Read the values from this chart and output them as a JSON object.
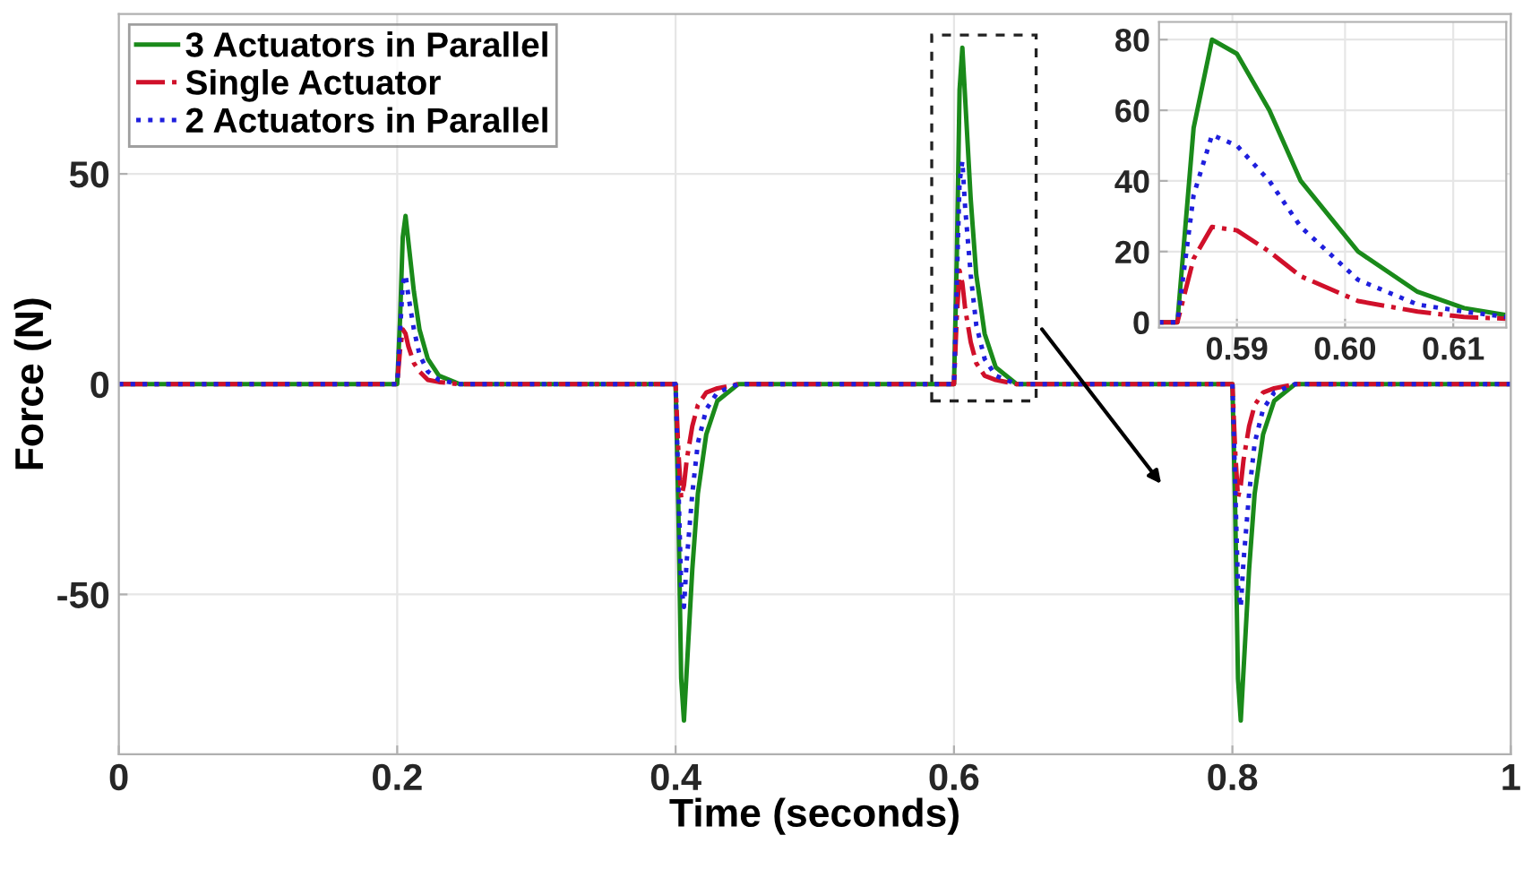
{
  "chart_data": [
    {
      "type": "line",
      "xlabel": "Time (seconds)",
      "ylabel": "Force (N)",
      "xlim": [
        0,
        1
      ],
      "xticks": [
        0,
        0.2,
        0.4,
        0.6,
        0.8,
        1
      ],
      "ylim": [
        -88,
        88
      ],
      "yticks": [
        -50,
        0,
        50
      ],
      "grid": true,
      "legend": "top left",
      "x": [
        0,
        0.2,
        0.202,
        0.204,
        0.206,
        0.208,
        0.212,
        0.216,
        0.222,
        0.23,
        0.245,
        0.4,
        0.402,
        0.404,
        0.406,
        0.408,
        0.412,
        0.416,
        0.422,
        0.43,
        0.445,
        0.6,
        0.602,
        0.604,
        0.606,
        0.608,
        0.612,
        0.616,
        0.622,
        0.63,
        0.645,
        0.8,
        0.802,
        0.804,
        0.806,
        0.808,
        0.812,
        0.816,
        0.822,
        0.83,
        0.845,
        1
      ],
      "series": [
        {
          "name": "3 Actuators in Parallel",
          "color": "#1a8a1a",
          "line_style": "solid",
          "values": [
            0,
            0,
            15,
            35,
            40,
            34,
            22,
            13,
            6,
            2,
            0,
            0,
            -30,
            -70,
            -80,
            -68,
            -44,
            -26,
            -12,
            -4,
            0,
            0,
            30,
            70,
            80,
            68,
            44,
            26,
            12,
            4,
            0,
            0,
            -30,
            -70,
            -80,
            -68,
            -44,
            -26,
            -12,
            -4,
            0,
            0
          ]
        },
        {
          "name": "Single Actuator",
          "color": "#d0102a",
          "line_style": "dashdot",
          "values": [
            0,
            0,
            8,
            13,
            12,
            9,
            5,
            3,
            1,
            0.5,
            0,
            0,
            -16,
            -27,
            -24,
            -18,
            -10,
            -5,
            -2,
            -1,
            0,
            0,
            16,
            27,
            24,
            18,
            10,
            5,
            2,
            1,
            0,
            0,
            -16,
            -27,
            -24,
            -18,
            -10,
            -5,
            -2,
            -1,
            0,
            0
          ]
        },
        {
          "name": "2 Actuators in Parallel",
          "color": "#1f1fdd",
          "line_style": "dotted",
          "values": [
            0,
            0,
            12,
            24,
            26,
            21,
            13,
            7,
            3,
            1,
            0,
            0,
            -24,
            -48,
            -53,
            -42,
            -26,
            -14,
            -6,
            -2,
            0,
            0,
            24,
            48,
            53,
            42,
            26,
            14,
            6,
            2,
            0,
            0,
            -24,
            -48,
            -53,
            -42,
            -26,
            -14,
            -6,
            -2,
            0,
            0
          ]
        }
      ]
    },
    {
      "type": "line",
      "xlim": [
        0.5828,
        0.6149
      ],
      "xticks": [
        0.59,
        {
          "value": 0.6,
          "label": "0.60"
        },
        0.61
      ],
      "ylim": [
        -1.5,
        85
      ],
      "yticks": [
        0,
        20,
        40,
        60,
        80
      ],
      "grid": true,
      "x": [
        0.5828,
        0.5845,
        0.586,
        0.5877,
        0.59,
        0.593,
        0.5959,
        0.6012,
        0.6067,
        0.611,
        0.6149
      ],
      "series": [
        {
          "color": "#1a8a1a",
          "line_style": "solid",
          "values": [
            0,
            0,
            55,
            80,
            76,
            60,
            40,
            20,
            8.6,
            4,
            2
          ]
        },
        {
          "color": "#d0102a",
          "line_style": "dashdot",
          "values": [
            0,
            0,
            18,
            27,
            26,
            20,
            13,
            6,
            3,
            1.5,
            1
          ]
        },
        {
          "color": "#1f1fdd",
          "line_style": "dotted",
          "values": [
            0,
            0,
            36,
            53,
            50,
            40,
            27,
            12,
            5,
            3,
            1.5
          ]
        }
      ]
    }
  ]
}
